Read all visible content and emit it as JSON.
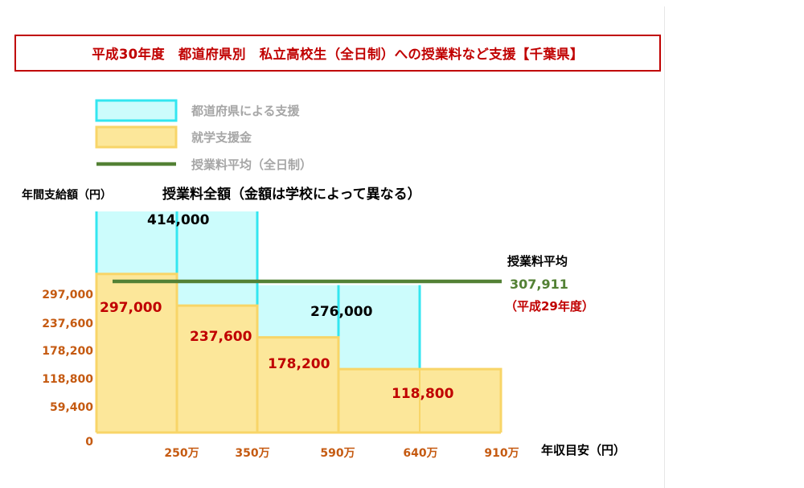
{
  "title": "平成30年度　都道府県別　私立高校生（全日制）への授業料など支援【千葉県】",
  "legend": {
    "prefecture": "都道府県による支援",
    "national": "就学支援金",
    "average": "授業料平均（全日制）"
  },
  "labels": {
    "ylabel": "年間支給額（円）",
    "total_note": "授業料全額（金額は学校によって異なる）",
    "xlabel": "年収目安（円）",
    "avg_title": "授業料平均",
    "avg_value": "307,911",
    "avg_year": "（平成29年度）"
  },
  "colors": {
    "prefecture_fill": "#ccfcfc",
    "prefecture_edge": "#33e6f0",
    "national_fill": "#fce79a",
    "national_edge": "#f8d568",
    "average_line": "#538135",
    "axis_text": "#c55a11",
    "value_red": "#c00000",
    "title_red": "#c00000"
  },
  "chart_data": {
    "type": "bar",
    "x_ticks": [
      "250万",
      "350万",
      "590万",
      "640万",
      "910万"
    ],
    "x_edges": [
      0,
      250,
      350,
      590,
      640,
      910
    ],
    "y_ticks": [
      "297,000",
      "237,600",
      "178,200",
      "118,800",
      "59,400",
      "0"
    ],
    "ylim": [
      0,
      414000
    ],
    "series": [
      {
        "name": "就学支援金",
        "segments": [
          {
            "x0": 0,
            "x1": 250,
            "value": 297000
          },
          {
            "x0": 250,
            "x1": 350,
            "value": 237600
          },
          {
            "x0": 350,
            "x1": 590,
            "value": 178200
          },
          {
            "x0": 590,
            "x1": 910,
            "value": 118800
          }
        ]
      },
      {
        "name": "都道府県による支援",
        "segments": [
          {
            "x0": 0,
            "x1": 350,
            "top": 414000
          },
          {
            "x0": 350,
            "x1": 640,
            "top": 276000
          }
        ]
      }
    ],
    "value_labels": [
      "297,000",
      "237,600",
      "178,200",
      "118,800"
    ],
    "top_labels": [
      "414,000",
      "276,000"
    ],
    "average": 307911
  }
}
